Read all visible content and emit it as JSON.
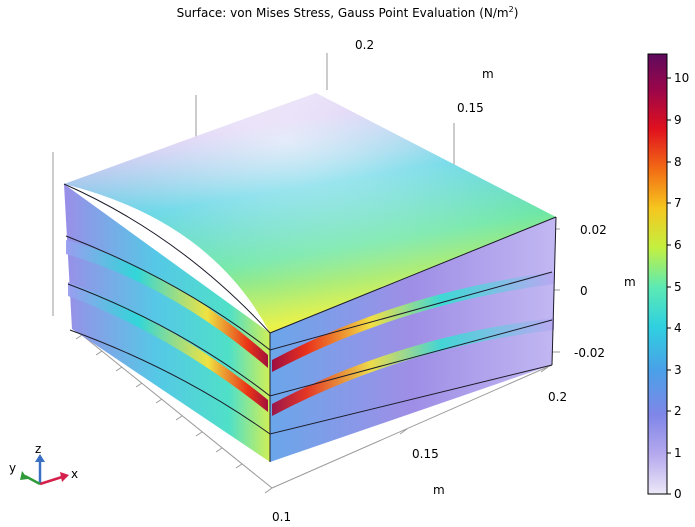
{
  "plot": {
    "title_main": "Surface: von Mises Stress, Gauss Point Evaluation (N/m",
    "title_sup": "2",
    "title_end": ")"
  },
  "axes": {
    "x_ticks": [
      "0.1",
      "0.15",
      "0.2"
    ],
    "x_unit": "m",
    "y_ticks": [
      "0.2",
      "0.15"
    ],
    "y_unit": "m",
    "z_ticks": [
      "0.02",
      "0",
      "-0.02"
    ],
    "z_unit": "m"
  },
  "triad": {
    "x": "x",
    "y": "y",
    "z": "z",
    "colors": {
      "x": "#d4204a",
      "y": "#2e9a3a",
      "z": "#3a6fc4"
    }
  },
  "colorbar": {
    "ticks": [
      "10",
      "9",
      "8",
      "7",
      "6",
      "5",
      "4",
      "3",
      "2",
      "1",
      "0"
    ],
    "colormap": [
      "#e6e0f6",
      "#a08ae6",
      "#5b78e8",
      "#3fb2e8",
      "#36e2d4",
      "#7ef08a",
      "#e6f03a",
      "#f7a21c",
      "#ee2a12",
      "#b0063a",
      "#6e0a5c"
    ]
  }
}
